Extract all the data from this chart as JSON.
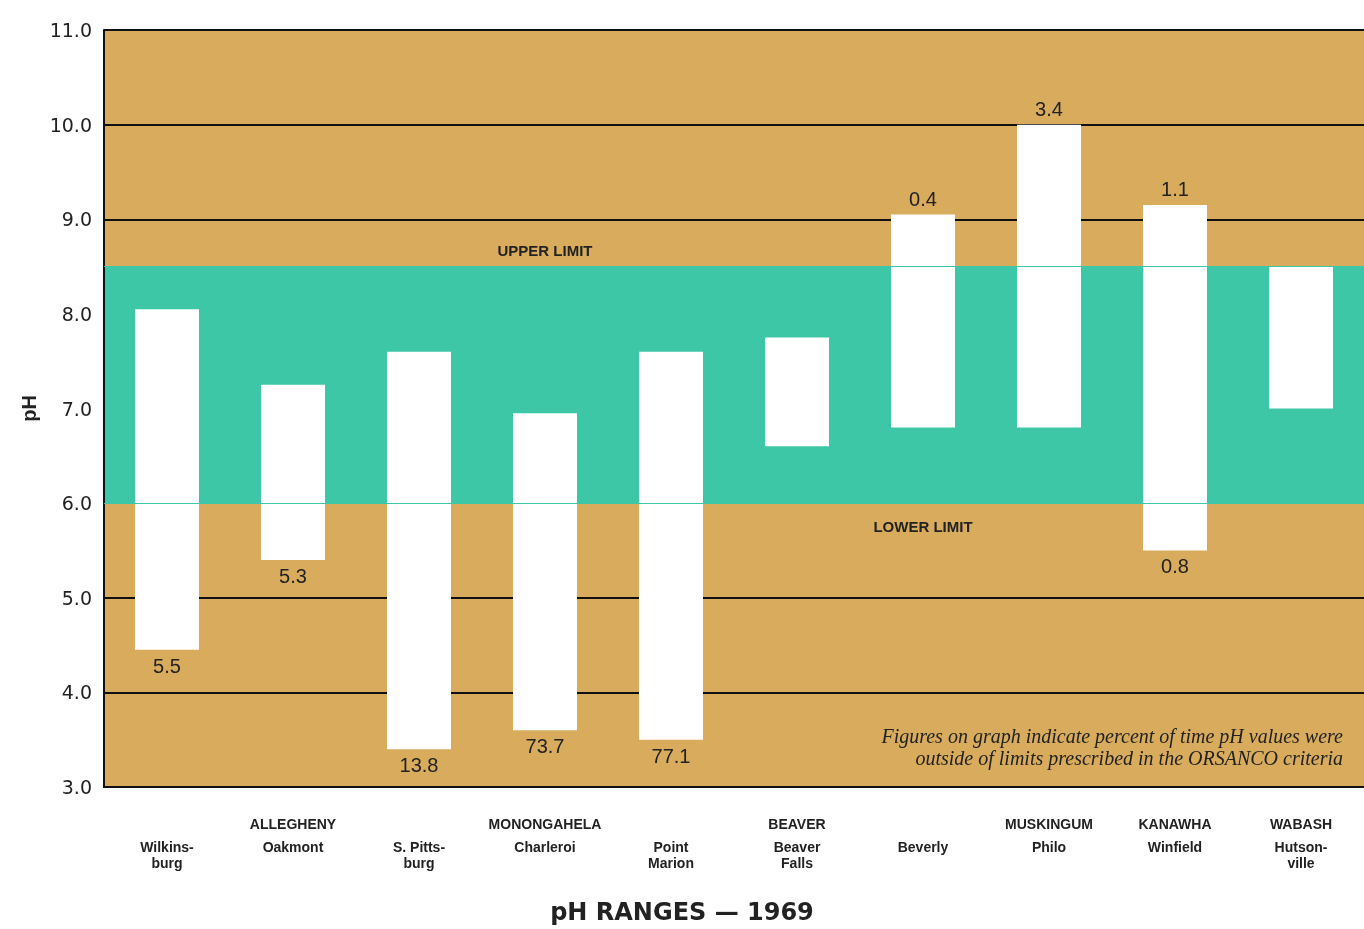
{
  "chart_data": {
    "type": "bar",
    "title": "pH RANGES — 1969",
    "ylabel": "pH",
    "categories": [
      "Wilkins-\nburg",
      "Oakmont",
      "S. Pitts-\nburg",
      "Charleroi",
      "Point\nMarion",
      "Beaver\nFalls",
      "Beverly",
      "Philo",
      "Winfield",
      "Hutson-\nville"
    ],
    "base": [
      4.45,
      5.4,
      3.4,
      3.6,
      3.5,
      6.6,
      6.8,
      6.8,
      5.5,
      7.0
    ],
    "values": [
      3.6,
      1.85,
      4.2,
      3.35,
      4.1,
      1.15,
      2.25,
      3.2,
      3.65,
      1.5
    ],
    "color": "#ffffff",
    "ylim": [
      3,
      11
    ],
    "yticks": [
      {
        "value": 3,
        "label": "3.0"
      },
      {
        "value": 4,
        "label": "4.0"
      },
      {
        "value": 5,
        "label": "5.0"
      },
      {
        "value": 6,
        "label": "6.0"
      },
      {
        "value": 7,
        "label": "7.0"
      },
      {
        "value": 8,
        "label": "8.0"
      },
      {
        "value": 9,
        "label": "9.0"
      },
      {
        "value": 10,
        "label": "10.0"
      },
      {
        "value": 11,
        "label": "11.0"
      }
    ],
    "grid": "y",
    "bands": [
      {
        "axis": "y",
        "from": 6.0,
        "to": 8.5,
        "color": "#3ec7a6"
      }
    ],
    "ref_lines": [
      {
        "axis": "y",
        "value": 8.5,
        "label": "UPPER LIMIT",
        "color": "#3ec7a6"
      },
      {
        "axis": "y",
        "value": 6.0,
        "label": "LOWER LIMIT",
        "color": "#3ec7a6"
      }
    ],
    "annotations": [
      {
        "text": "5.5",
        "x": "Wilkins-\nburg",
        "y": 4.45
      },
      {
        "text": "5.3",
        "x": "Oakmont",
        "y": 5.4
      },
      {
        "text": "13.8",
        "x": "S. Pitts-\nburg",
        "y": 3.4
      },
      {
        "text": "73.7",
        "x": "Charleroi",
        "y": 3.6
      },
      {
        "text": "77.1",
        "x": "Point\nMarion",
        "y": 3.5
      },
      {
        "text": "0.4",
        "x": "Beverly",
        "y": 9.05
      },
      {
        "text": "3.4",
        "x": "Philo",
        "y": 10.0
      },
      {
        "text": "1.1",
        "x": "Winfield",
        "y": 9.15
      },
      {
        "text": "0.8",
        "x": "Winfield",
        "y": 5.5
      },
      "ALLEGHENY",
      "MONONGAHELA",
      "BEAVER",
      "MUSKINGUM",
      "KANAWHA",
      "WABASH",
      "Figures on graph indicate percent of time pH values were\noutside of limits prescribed in the ORSANCO criteria"
    ]
  }
}
